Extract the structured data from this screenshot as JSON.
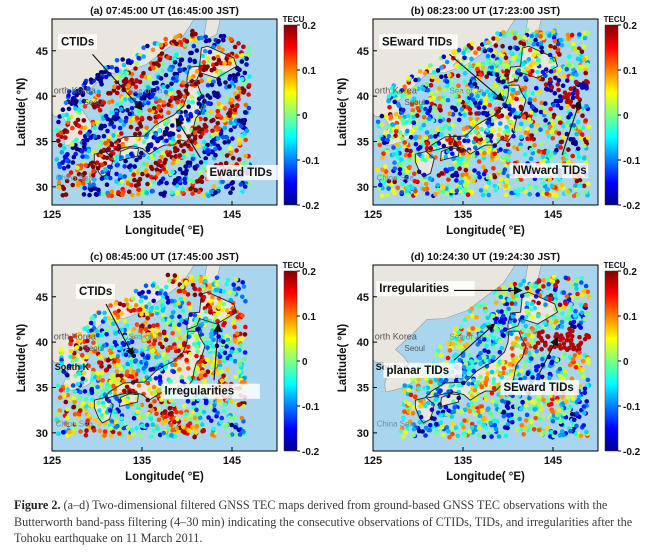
{
  "figure": {
    "colorbar_unit": "TECU",
    "colorbar_ticks": [
      "0.2",
      "0.1",
      "0",
      "-0.1",
      "-0.2"
    ],
    "xlabel": "Longitude( °E)",
    "ylabel": "Latitude( °N)",
    "xticks": [
      "125",
      "135",
      "145"
    ],
    "yticks": [
      "45",
      "40",
      "35",
      "30"
    ],
    "map_labels": {
      "north_korea": "orth Korea",
      "seoul": "Seoul",
      "south_korea": "South K",
      "china_sea": "China Sea",
      "sea_of_japan": "Sea of Ja"
    },
    "colors": {
      "ocean": "#a9d6ee",
      "land": "#e9e6df",
      "coast": "#222222",
      "colormap": "jet"
    },
    "panels": [
      {
        "title": "(a) 07:45:00 UT (16:45:00 JST)",
        "labels": [
          "CTIDs",
          "Eward TIDs"
        ]
      },
      {
        "title": "(b) 08:23:00 UT (17:23:00 JST)",
        "labels": [
          "SEward TIDs",
          "NWward TIDs"
        ]
      },
      {
        "title": "(c) 08:45:00 UT (17:45:00 JST)",
        "labels": [
          "CTIDs",
          "Irregularities"
        ]
      },
      {
        "title": "(d) 10:24:30 UT (19:24:30 JST)",
        "labels": [
          "Irregularities",
          "planar TIDs",
          "SEward TIDs"
        ]
      }
    ]
  },
  "caption": {
    "label": "Figure 2.",
    "text": " (a–d) Two-dimensional filtered GNSS TEC maps derived from ground-based GNSS TEC observations with the Butterworth band-pass filtering (4–30 min) indicating the consecutive observations of CTIDs, TIDs, and irregularities after the Tohoku earthquake on 11 March 2011."
  }
}
